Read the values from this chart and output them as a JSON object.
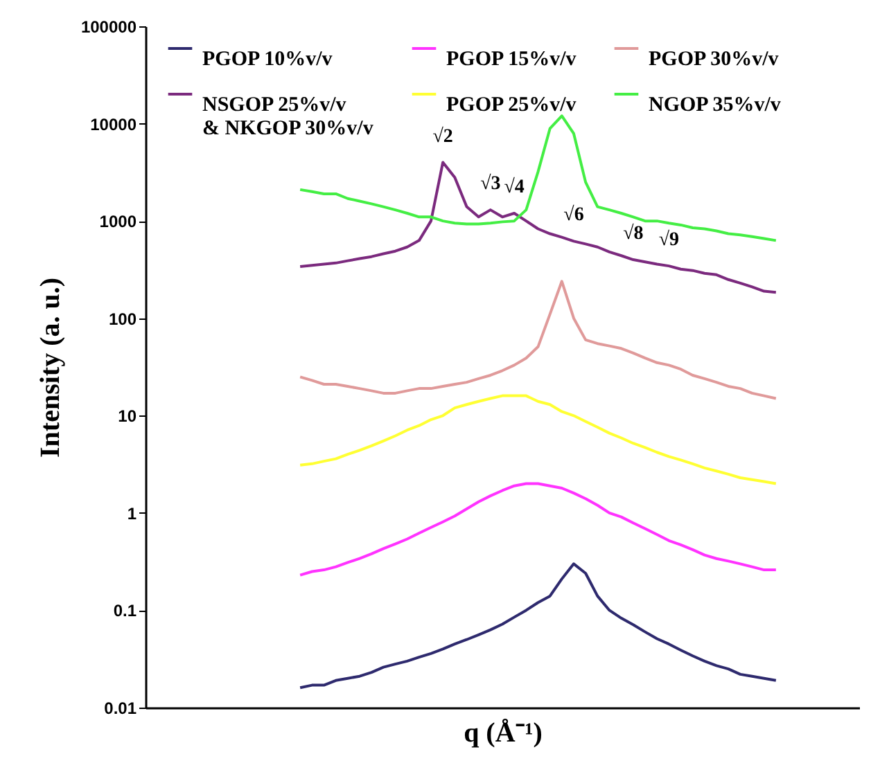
{
  "chart_data": {
    "type": "line",
    "xlabel": "q (Å⁻¹)",
    "ylabel": "Intensity (a. u.)",
    "categories": [
      null,
      null,
      null,
      null,
      null,
      null,
      null,
      null,
      null,
      null,
      null,
      null,
      null,
      null,
      null,
      null,
      null,
      null,
      null,
      null,
      null,
      null,
      null,
      null,
      null,
      null,
      null,
      null,
      null,
      null,
      null,
      null,
      null,
      null,
      null,
      null,
      null,
      null,
      null,
      null,
      null,
      null,
      null,
      null,
      null,
      null,
      null,
      null,
      null,
      null,
      null,
      null,
      null,
      null,
      null,
      null,
      null,
      null,
      null,
      null,
      null
    ],
    "series": [
      {
        "name": "PGOP 10%v/v",
        "color": "#2e2a6e",
        "values": [
          null,
          null,
          null,
          null,
          null,
          null,
          null,
          null,
          null,
          null,
          null,
          null,
          null,
          0.016,
          0.017,
          0.017,
          0.019,
          0.02,
          0.021,
          0.023,
          0.026,
          0.028,
          0.03,
          0.033,
          0.036,
          0.04,
          0.045,
          0.05,
          0.056,
          0.063,
          0.072,
          0.085,
          0.1,
          0.12,
          0.14,
          0.21,
          0.3,
          0.24,
          0.14,
          0.1,
          0.083,
          0.071,
          0.06,
          0.051,
          0.045,
          0.039,
          0.034,
          0.03,
          0.027,
          0.025,
          0.022,
          0.021,
          0.02,
          0.019,
          null,
          null,
          null,
          null,
          null,
          null,
          null
        ]
      },
      {
        "name": "NSGOP 25%v/v\n& NKGOP 30%v/v",
        "color": "#7b2a7e",
        "values": [
          null,
          null,
          null,
          null,
          null,
          null,
          null,
          null,
          null,
          null,
          null,
          null,
          null,
          340,
          350,
          360,
          370,
          390,
          410,
          430,
          460,
          490,
          540,
          630,
          1000,
          4000,
          2800,
          1400,
          1100,
          1300,
          1100,
          1200,
          1000,
          830,
          740,
          680,
          620,
          580,
          540,
          480,
          440,
          400,
          380,
          360,
          345,
          320,
          310,
          290,
          280,
          250,
          230,
          210,
          190,
          185,
          null,
          null,
          null,
          null,
          null,
          null,
          null
        ]
      },
      {
        "name": "PGOP 15%v/v",
        "color": "#ff33ff",
        "values": [
          null,
          null,
          null,
          null,
          null,
          null,
          null,
          null,
          null,
          null,
          null,
          null,
          null,
          0.23,
          0.25,
          0.26,
          0.28,
          0.31,
          0.34,
          0.38,
          0.43,
          0.48,
          0.54,
          0.62,
          0.71,
          0.81,
          0.93,
          1.1,
          1.3,
          1.5,
          1.7,
          1.9,
          2.0,
          2.0,
          1.9,
          1.8,
          1.6,
          1.4,
          1.2,
          1.0,
          0.91,
          0.79,
          0.69,
          0.6,
          0.52,
          0.47,
          0.42,
          0.37,
          0.34,
          0.32,
          0.3,
          0.28,
          0.26,
          0.26,
          null,
          null,
          null,
          null,
          null,
          null,
          null
        ]
      },
      {
        "name": "PGOP 25%v/v",
        "color": "#ffff33",
        "values": [
          null,
          null,
          null,
          null,
          null,
          null,
          null,
          null,
          null,
          null,
          null,
          null,
          null,
          3.1,
          3.2,
          3.4,
          3.6,
          4.0,
          4.4,
          4.9,
          5.5,
          6.2,
          7.1,
          7.9,
          9.1,
          10,
          12,
          13,
          14,
          15,
          16,
          16,
          16,
          14,
          13,
          11,
          10,
          8.7,
          7.6,
          6.6,
          5.9,
          5.2,
          4.7,
          4.2,
          3.8,
          3.5,
          3.2,
          2.9,
          2.7,
          2.5,
          2.3,
          2.2,
          2.1,
          2.0,
          null,
          null,
          null,
          null,
          null,
          null,
          null
        ]
      },
      {
        "name": "PGOP 30%v/v",
        "color": "#e09a9a",
        "values": [
          null,
          null,
          null,
          null,
          null,
          null,
          null,
          null,
          null,
          null,
          null,
          null,
          null,
          25,
          23,
          21,
          21,
          20,
          19,
          18,
          17,
          17,
          18,
          19,
          19,
          20,
          21,
          22,
          24,
          26,
          29,
          33,
          39,
          51,
          110,
          240,
          100,
          60,
          55,
          52,
          49,
          44,
          39,
          35,
          33,
          30,
          26,
          24,
          22,
          20,
          19,
          17,
          16,
          15,
          null,
          null,
          null,
          null,
          null,
          null,
          null
        ]
      },
      {
        "name": "NGOP 35%v/v",
        "color": "#44ee44",
        "values": [
          null,
          null,
          null,
          null,
          null,
          null,
          null,
          null,
          null,
          null,
          null,
          null,
          null,
          2100,
          2000,
          1900,
          1900,
          1700,
          1600,
          1500,
          1400,
          1300,
          1200,
          1100,
          1100,
          1000,
          950,
          930,
          930,
          950,
          980,
          1000,
          1300,
          3200,
          8900,
          12000,
          7900,
          2500,
          1400,
          1300,
          1200,
          1100,
          1000,
          1000,
          950,
          910,
          850,
          830,
          790,
          740,
          720,
          690,
          660,
          630,
          null,
          null,
          null,
          null,
          null,
          null,
          null
        ]
      }
    ],
    "annotations": [
      {
        "text": "√2",
        "y": 4000
      },
      {
        "text": "√3",
        "y": 1300
      },
      {
        "text": "√4",
        "y": 1200
      },
      {
        "text": "√6",
        "y": 620
      },
      {
        "text": "√8",
        "y": 400
      },
      {
        "text": "√9",
        "y": 345
      }
    ],
    "ylim": [
      0.01,
      100000
    ],
    "yticks": [
      0.01,
      0.1,
      1,
      10,
      100,
      1000,
      10000,
      100000
    ],
    "log": true,
    "legend": "top",
    "tick_labels": "y"
  }
}
